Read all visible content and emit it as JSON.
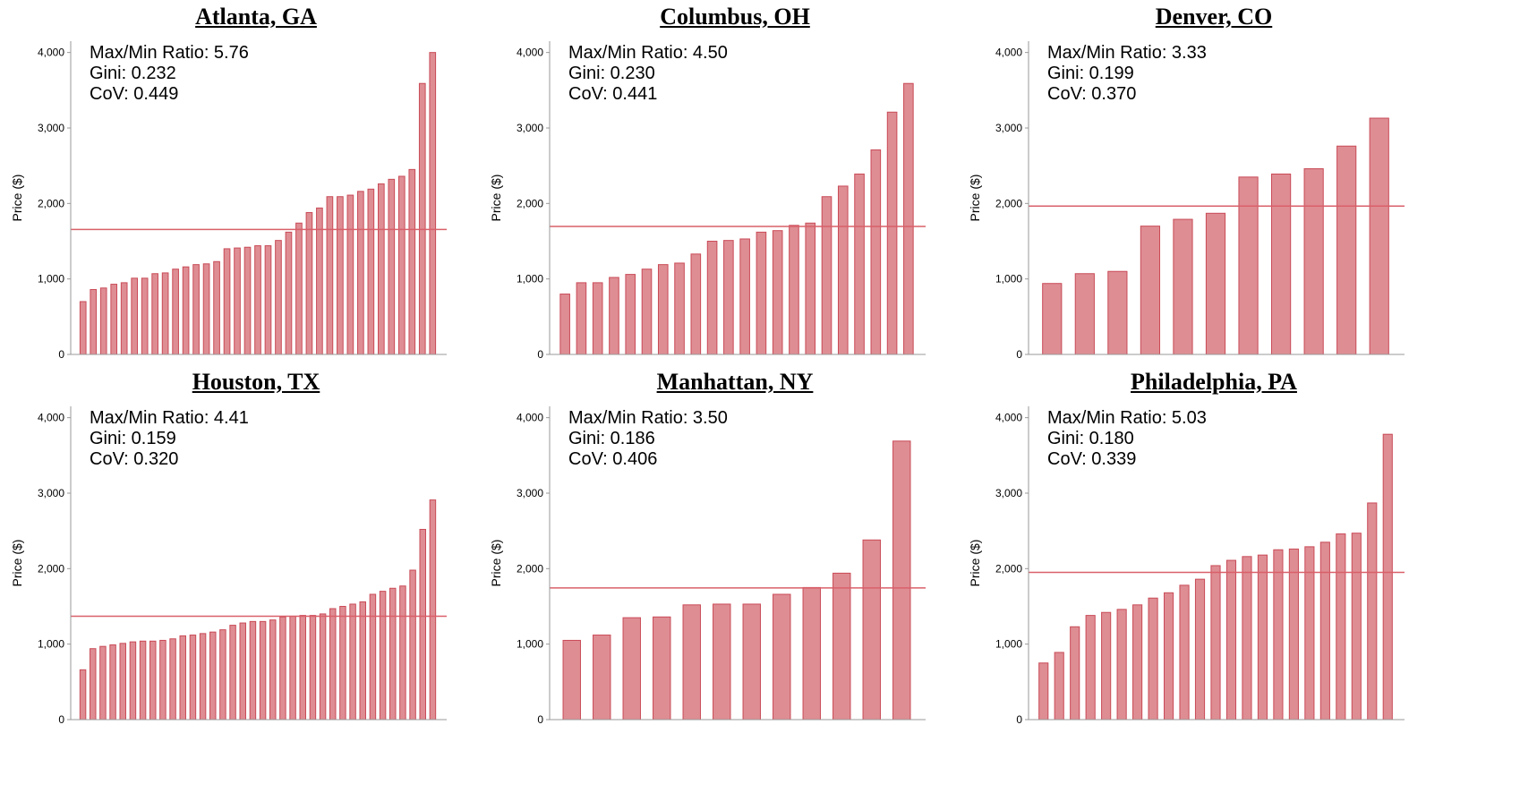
{
  "chart_data": [
    {
      "type": "bar",
      "title": "Atlanta, GA",
      "ylabel": "Price ($)",
      "xlabel": "",
      "ylim": [
        0,
        4150
      ],
      "yticks": [
        0,
        1000,
        2000,
        3000,
        4000
      ],
      "ytick_labels": [
        "0",
        "1,000",
        "2,000",
        "3,000",
        "4,000"
      ],
      "stats": [
        "Max/Min Ratio: 5.76",
        "Gini: 0.232",
        "CoV: 0.449"
      ],
      "mean_line": 1655,
      "values": [
        700,
        860,
        880,
        930,
        950,
        1010,
        1010,
        1070,
        1080,
        1130,
        1160,
        1190,
        1200,
        1230,
        1400,
        1410,
        1420,
        1440,
        1440,
        1510,
        1620,
        1740,
        1880,
        1940,
        2090,
        2090,
        2110,
        2160,
        2190,
        2260,
        2320,
        2360,
        2450,
        3590,
        4000
      ]
    },
    {
      "type": "bar",
      "title": "Columbus, OH",
      "ylabel": "Price ($)",
      "xlabel": "",
      "ylim": [
        0,
        4150
      ],
      "yticks": [
        0,
        1000,
        2000,
        3000,
        4000
      ],
      "ytick_labels": [
        "0",
        "1,000",
        "2,000",
        "3,000",
        "4,000"
      ],
      "stats": [
        "Max/Min Ratio: 4.50",
        "Gini: 0.230",
        "CoV: 0.441"
      ],
      "mean_line": 1695,
      "values": [
        800,
        950,
        950,
        1020,
        1060,
        1130,
        1190,
        1210,
        1330,
        1500,
        1510,
        1530,
        1620,
        1640,
        1710,
        1740,
        2090,
        2230,
        2390,
        2710,
        3210,
        3590
      ]
    },
    {
      "type": "bar",
      "title": "Denver, CO",
      "ylabel": "Price ($)",
      "xlabel": "",
      "ylim": [
        0,
        4150
      ],
      "yticks": [
        0,
        1000,
        2000,
        3000,
        4000
      ],
      "ytick_labels": [
        "0",
        "1,000",
        "2,000",
        "3,000",
        "4,000"
      ],
      "stats": [
        "Max/Min Ratio: 3.33",
        "Gini: 0.199",
        "CoV: 0.370"
      ],
      "mean_line": 1965,
      "values": [
        940,
        1070,
        1100,
        1700,
        1790,
        1870,
        2350,
        2390,
        2460,
        2760,
        3130
      ]
    },
    {
      "type": "bar",
      "title": "Houston, TX",
      "ylabel": "Price ($)",
      "xlabel": "",
      "ylim": [
        0,
        4150
      ],
      "yticks": [
        0,
        1000,
        2000,
        3000,
        4000
      ],
      "ytick_labels": [
        "0",
        "1,000",
        "2,000",
        "3,000",
        "4,000"
      ],
      "stats": [
        "Max/Min Ratio: 4.41",
        "Gini: 0.159",
        "CoV: 0.320"
      ],
      "mean_line": 1370,
      "values": [
        660,
        940,
        970,
        990,
        1010,
        1030,
        1040,
        1040,
        1050,
        1070,
        1110,
        1120,
        1140,
        1160,
        1190,
        1250,
        1280,
        1300,
        1300,
        1320,
        1360,
        1370,
        1380,
        1380,
        1400,
        1470,
        1500,
        1530,
        1560,
        1660,
        1700,
        1740,
        1770,
        1980,
        2520,
        2910
      ]
    },
    {
      "type": "bar",
      "title": "Manhattan, NY",
      "ylabel": "Price ($)",
      "xlabel": "",
      "ylim": [
        0,
        4150
      ],
      "yticks": [
        0,
        1000,
        2000,
        3000,
        4000
      ],
      "ytick_labels": [
        "0",
        "1,000",
        "2,000",
        "3,000",
        "4,000"
      ],
      "stats": [
        "Max/Min Ratio: 3.50",
        "Gini: 0.186",
        "CoV: 0.406"
      ],
      "mean_line": 1745,
      "values": [
        1050,
        1120,
        1350,
        1360,
        1520,
        1530,
        1530,
        1660,
        1750,
        1940,
        2380,
        3690
      ]
    },
    {
      "type": "bar",
      "title": "Philadelphia, PA",
      "ylabel": "Price ($)",
      "xlabel": "",
      "ylim": [
        0,
        4150
      ],
      "yticks": [
        0,
        1000,
        2000,
        3000,
        4000
      ],
      "ytick_labels": [
        "0",
        "1,000",
        "2,000",
        "3,000",
        "4,000"
      ],
      "stats": [
        "Max/Min Ratio: 5.03",
        "Gini: 0.180",
        "CoV: 0.339"
      ],
      "mean_line": 1950,
      "values": [
        750,
        890,
        1230,
        1380,
        1420,
        1460,
        1520,
        1610,
        1680,
        1780,
        1860,
        2040,
        2110,
        2160,
        2180,
        2250,
        2260,
        2290,
        2350,
        2460,
        2470,
        2870,
        3780
      ]
    }
  ],
  "style": {
    "bar_fill": "#DE8D93",
    "bar_stroke": "#C94B57",
    "mean_line_color": "#D9606A",
    "axis_color": "#999999"
  }
}
